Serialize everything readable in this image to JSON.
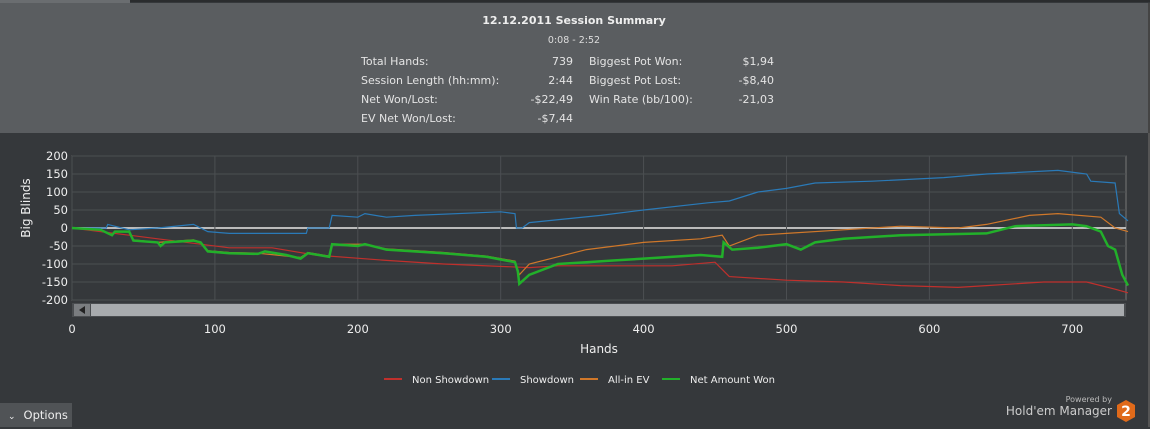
{
  "header": {
    "title": "12.12.2011 Session Summary",
    "range": "0:08 - 2:52",
    "stats": [
      {
        "label": "Total Hands:",
        "value": "739"
      },
      {
        "label": "Session Length (hh:mm):",
        "value": "2:44"
      },
      {
        "label": "Net Won/Lost:",
        "value": "-$22,49"
      },
      {
        "label": "EV Net Won/Lost:",
        "value": "-$7,44"
      },
      {
        "label": "Biggest Pot Won:",
        "value": "$1,94"
      },
      {
        "label": "Biggest Pot Lost:",
        "value": "-$8,40"
      },
      {
        "label": "Win Rate (bb/100):",
        "value": "-21,03"
      }
    ]
  },
  "options_label": "Options",
  "branding": {
    "powered": "Powered by",
    "product": "Hold'em Manager",
    "badge": "2"
  },
  "chart_data": {
    "type": "line",
    "xlabel": "Hands",
    "ylabel": "Big Blinds",
    "xlim": [
      0,
      739
    ],
    "ylim": [
      -200,
      200
    ],
    "xticks": [
      0,
      100,
      200,
      300,
      400,
      500,
      600,
      700
    ],
    "yticks": [
      200,
      150,
      100,
      50,
      0,
      -50,
      -100,
      -150,
      -200
    ],
    "legend_position": "bottom",
    "series": [
      {
        "name": "Non Showdown",
        "color": "#c0302c",
        "points": [
          [
            0,
            0
          ],
          [
            20,
            -10
          ],
          [
            40,
            -20
          ],
          [
            60,
            -30
          ],
          [
            90,
            -45
          ],
          [
            110,
            -55
          ],
          [
            140,
            -55
          ],
          [
            170,
            -75
          ],
          [
            220,
            -90
          ],
          [
            260,
            -100
          ],
          [
            320,
            -110
          ],
          [
            340,
            -105
          ],
          [
            420,
            -105
          ],
          [
            450,
            -95
          ],
          [
            460,
            -135
          ],
          [
            500,
            -145
          ],
          [
            540,
            -150
          ],
          [
            580,
            -160
          ],
          [
            620,
            -165
          ],
          [
            640,
            -160
          ],
          [
            680,
            -150
          ],
          [
            710,
            -150
          ],
          [
            730,
            -170
          ],
          [
            739,
            -180
          ]
        ]
      },
      {
        "name": "Showdown",
        "color": "#2a7ab8",
        "points": [
          [
            0,
            0
          ],
          [
            24,
            0
          ],
          [
            25,
            10
          ],
          [
            40,
            -5
          ],
          [
            60,
            0
          ],
          [
            85,
            10
          ],
          [
            95,
            -10
          ],
          [
            110,
            -15
          ],
          [
            164,
            -15
          ],
          [
            165,
            0
          ],
          [
            180,
            0
          ],
          [
            182,
            35
          ],
          [
            200,
            30
          ],
          [
            205,
            40
          ],
          [
            220,
            30
          ],
          [
            240,
            35
          ],
          [
            300,
            45
          ],
          [
            310,
            40
          ],
          [
            311,
            0
          ],
          [
            315,
            0
          ],
          [
            320,
            15
          ],
          [
            370,
            35
          ],
          [
            400,
            50
          ],
          [
            445,
            70
          ],
          [
            460,
            75
          ],
          [
            480,
            100
          ],
          [
            500,
            110
          ],
          [
            520,
            125
          ],
          [
            560,
            130
          ],
          [
            610,
            140
          ],
          [
            640,
            150
          ],
          [
            690,
            160
          ],
          [
            710,
            150
          ],
          [
            713,
            130
          ],
          [
            730,
            125
          ],
          [
            733,
            40
          ],
          [
            739,
            20
          ]
        ]
      },
      {
        "name": "All-in EV",
        "color": "#d0782a",
        "points": [
          [
            0,
            0
          ],
          [
            20,
            -5
          ],
          [
            28,
            -18
          ],
          [
            30,
            -10
          ],
          [
            40,
            -10
          ],
          [
            43,
            -33
          ],
          [
            60,
            -40
          ],
          [
            85,
            -33
          ],
          [
            90,
            -40
          ],
          [
            95,
            -63
          ],
          [
            110,
            -68
          ],
          [
            130,
            -70
          ],
          [
            160,
            -82
          ],
          [
            165,
            -68
          ],
          [
            180,
            -78
          ],
          [
            182,
            -45
          ],
          [
            205,
            -45
          ],
          [
            220,
            -58
          ],
          [
            260,
            -68
          ],
          [
            290,
            -78
          ],
          [
            310,
            -92
          ],
          [
            313,
            -130
          ],
          [
            320,
            -100
          ],
          [
            340,
            -80
          ],
          [
            360,
            -60
          ],
          [
            400,
            -40
          ],
          [
            440,
            -30
          ],
          [
            455,
            -20
          ],
          [
            460,
            -50
          ],
          [
            480,
            -20
          ],
          [
            500,
            -15
          ],
          [
            540,
            -5
          ],
          [
            580,
            5
          ],
          [
            620,
            0
          ],
          [
            640,
            10
          ],
          [
            670,
            35
          ],
          [
            690,
            40
          ],
          [
            720,
            30
          ],
          [
            730,
            0
          ],
          [
            739,
            -10
          ]
        ]
      },
      {
        "name": "Net Amount Won",
        "color": "#22b02a",
        "points": [
          [
            0,
            0
          ],
          [
            20,
            -5
          ],
          [
            28,
            -20
          ],
          [
            30,
            -10
          ],
          [
            40,
            -10
          ],
          [
            43,
            -35
          ],
          [
            60,
            -40
          ],
          [
            62,
            -50
          ],
          [
            65,
            -40
          ],
          [
            85,
            -35
          ],
          [
            90,
            -40
          ],
          [
            95,
            -65
          ],
          [
            110,
            -70
          ],
          [
            130,
            -72
          ],
          [
            135,
            -65
          ],
          [
            150,
            -75
          ],
          [
            160,
            -85
          ],
          [
            165,
            -70
          ],
          [
            180,
            -80
          ],
          [
            182,
            -45
          ],
          [
            200,
            -50
          ],
          [
            205,
            -45
          ],
          [
            220,
            -60
          ],
          [
            260,
            -70
          ],
          [
            290,
            -80
          ],
          [
            310,
            -95
          ],
          [
            312,
            -120
          ],
          [
            313,
            -155
          ],
          [
            320,
            -130
          ],
          [
            340,
            -100
          ],
          [
            360,
            -95
          ],
          [
            380,
            -90
          ],
          [
            400,
            -85
          ],
          [
            440,
            -75
          ],
          [
            455,
            -80
          ],
          [
            456,
            -40
          ],
          [
            462,
            -60
          ],
          [
            480,
            -55
          ],
          [
            500,
            -45
          ],
          [
            510,
            -60
          ],
          [
            520,
            -40
          ],
          [
            540,
            -30
          ],
          [
            580,
            -20
          ],
          [
            640,
            -15
          ],
          [
            650,
            -5
          ],
          [
            660,
            5
          ],
          [
            700,
            10
          ],
          [
            710,
            5
          ],
          [
            720,
            -10
          ],
          [
            725,
            -50
          ],
          [
            730,
            -60
          ],
          [
            735,
            -130
          ],
          [
            739,
            -160
          ]
        ]
      }
    ]
  }
}
